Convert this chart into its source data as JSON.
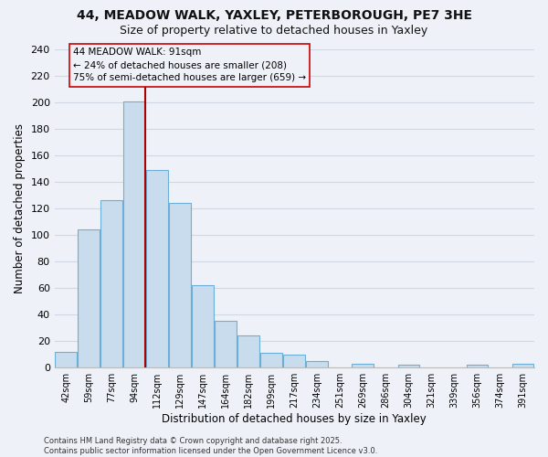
{
  "title_line1": "44, MEADOW WALK, YAXLEY, PETERBOROUGH, PE7 3HE",
  "title_line2": "Size of property relative to detached houses in Yaxley",
  "xlabel": "Distribution of detached houses by size in Yaxley",
  "ylabel": "Number of detached properties",
  "footer_line1": "Contains HM Land Registry data © Crown copyright and database right 2025.",
  "footer_line2": "Contains public sector information licensed under the Open Government Licence v3.0.",
  "bin_labels": [
    "42sqm",
    "59sqm",
    "77sqm",
    "94sqm",
    "112sqm",
    "129sqm",
    "147sqm",
    "164sqm",
    "182sqm",
    "199sqm",
    "217sqm",
    "234sqm",
    "251sqm",
    "269sqm",
    "286sqm",
    "304sqm",
    "321sqm",
    "339sqm",
    "356sqm",
    "374sqm",
    "391sqm"
  ],
  "bar_heights": [
    12,
    104,
    126,
    201,
    149,
    124,
    62,
    35,
    24,
    11,
    10,
    5,
    0,
    3,
    0,
    2,
    0,
    0,
    2,
    0,
    3
  ],
  "bar_color": "#c8dcee",
  "bar_edge_color": "#6baed6",
  "vline_index": 3,
  "property_line_label": "44 MEADOW WALK: 91sqm",
  "annotation_line2": "← 24% of detached houses are smaller (208)",
  "annotation_line3": "75% of semi-detached houses are larger (659) →",
  "vline_color": "#aa0000",
  "annotation_box_edgecolor": "#cc0000",
  "ylim": [
    0,
    240
  ],
  "yticks": [
    0,
    20,
    40,
    60,
    80,
    100,
    120,
    140,
    160,
    180,
    200,
    220,
    240
  ],
  "background_color": "#eef2f8",
  "grid_color": "#d0d8e4",
  "title_fontsize": 10,
  "subtitle_fontsize": 9,
  "footer_fontsize": 6
}
